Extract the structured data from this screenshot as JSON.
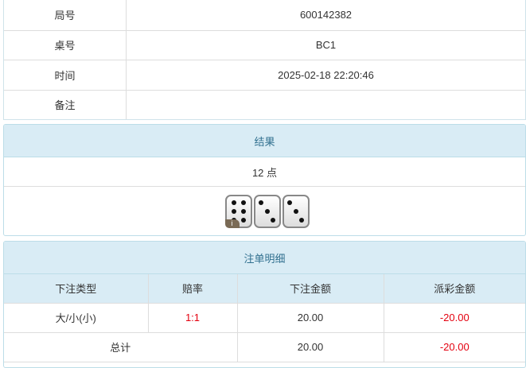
{
  "info": [
    {
      "label": "局号",
      "value": "600142382"
    },
    {
      "label": "桌号",
      "value": "BC1"
    },
    {
      "label": "时间",
      "value": "2025-02-18 22:20:46"
    },
    {
      "label": "备注",
      "value": ""
    }
  ],
  "result": {
    "title": "结果",
    "points": "12 点",
    "dice": [
      6,
      3,
      3
    ],
    "badge": "i"
  },
  "bets": {
    "title": "注单明细",
    "headers": [
      "下注类型",
      "赔率",
      "下注金额",
      "派彩金额"
    ],
    "rows": [
      {
        "type": "大/小(小)",
        "odds": "1:1",
        "amount": "20.00",
        "payout": "-20.00"
      }
    ],
    "total": {
      "label": "总计",
      "amount": "20.00",
      "payout": "-20.00"
    }
  },
  "colors": {
    "header_bg": "#d9ecf5",
    "negative": "#e4000f",
    "odds": "#e4000f"
  }
}
